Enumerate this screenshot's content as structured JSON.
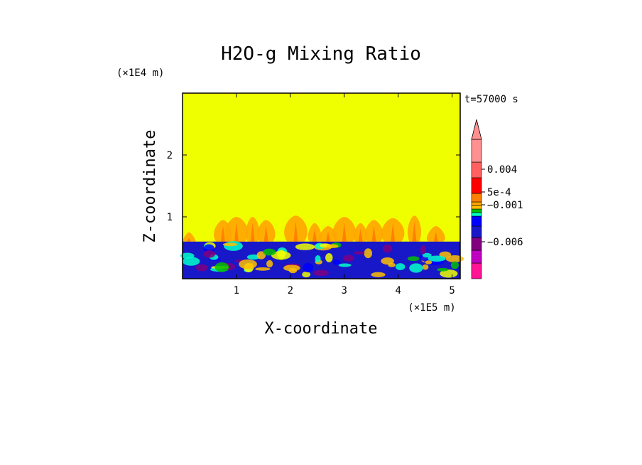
{
  "chart_data": {
    "type": "heatmap",
    "title": "H2O-g Mixing Ratio",
    "xlabel": "X-coordinate",
    "ylabel": "Z-coordinate",
    "x_unit": "(×1E5 m)",
    "y_unit": "(×1E4 m)",
    "time_label": "t=57000 s",
    "xlim": [
      0,
      5.15
    ],
    "ylim": [
      0,
      3.0
    ],
    "x_ticks": [
      1,
      2,
      3,
      4,
      5
    ],
    "y_ticks": [
      1,
      2
    ],
    "background_value_color": "#f0ff00",
    "boundary_layer_top": 0.6,
    "plumes": [
      {
        "x": 0.12,
        "top": 0.75
      },
      {
        "x": 0.75,
        "top": 0.95
      },
      {
        "x": 1.0,
        "top": 1.0
      },
      {
        "x": 1.3,
        "top": 1.0
      },
      {
        "x": 1.55,
        "top": 0.95
      },
      {
        "x": 2.1,
        "top": 1.02
      },
      {
        "x": 2.45,
        "top": 0.9
      },
      {
        "x": 2.7,
        "top": 0.85
      },
      {
        "x": 3.0,
        "top": 1.0
      },
      {
        "x": 3.3,
        "top": 0.9
      },
      {
        "x": 3.55,
        "top": 0.95
      },
      {
        "x": 3.9,
        "top": 0.98
      },
      {
        "x": 4.3,
        "top": 1.02
      },
      {
        "x": 4.7,
        "top": 0.85
      }
    ],
    "colorbar": {
      "colors": [
        "#ff1493",
        "#c000c0",
        "#800080",
        "#1818c8",
        "#0000ff",
        "#00ffc8",
        "#00c000",
        "#ffc000",
        "#ffa500",
        "#ff8000",
        "#ff0000",
        "#ff6060",
        "#ff9090"
      ],
      "labels": [
        {
          "text": "0.004",
          "value": 0.004
        },
        {
          "text": "5e-4",
          "value": 0.0005
        },
        {
          "text": "−0.001",
          "value": -0.001
        },
        {
          "text": "−0.006",
          "value": -0.006
        }
      ],
      "extend": "max"
    }
  }
}
